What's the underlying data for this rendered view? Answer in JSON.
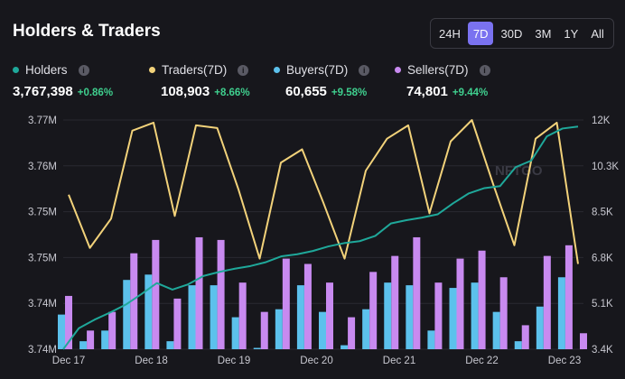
{
  "header": {
    "title": "Holders & Traders"
  },
  "ranges": [
    {
      "label": "24H",
      "active": false
    },
    {
      "label": "7D",
      "active": true
    },
    {
      "label": "30D",
      "active": false
    },
    {
      "label": "3M",
      "active": false
    },
    {
      "label": "1Y",
      "active": false
    },
    {
      "label": "All",
      "active": false
    }
  ],
  "stats": {
    "holders": {
      "label": "Holders",
      "value": "3,767,398",
      "change": "+0.86%",
      "color": "#1fa89a"
    },
    "traders": {
      "label": "Traders(7D)",
      "value": "108,903",
      "change": "+8.66%",
      "color": "#f2d27a"
    },
    "buyers": {
      "label": "Buyers(7D)",
      "value": "60,655",
      "change": "+9.58%",
      "color": "#5cc1ec"
    },
    "sellers": {
      "label": "Sellers(7D)",
      "value": "74,801",
      "change": "+9.44%",
      "color": "#c88af0"
    }
  },
  "watermark": "NFTGO",
  "chart_data": {
    "type": "bar+line",
    "x_ticks": [
      "Dec 17",
      "Dec 18",
      "Dec 19",
      "Dec 20",
      "Dec 21",
      "Dec 22",
      "Dec 23"
    ],
    "left_axis": {
      "ticks": [
        "3.74M",
        "3.74M",
        "3.75M",
        "3.75M",
        "3.76M",
        "3.77M"
      ],
      "ylim": [
        3735000,
        3770000
      ]
    },
    "right_axis": {
      "ticks": [
        "3.4K",
        "5.1K",
        "6.8K",
        "8.5K",
        "10.3K",
        "12K"
      ],
      "ylim": [
        3400,
        12000
      ]
    },
    "series": [
      {
        "name": "Holders",
        "axis": "left",
        "type": "line",
        "color": "#1fa89a",
        "values": [
          3735000,
          3738200,
          3739500,
          3740600,
          3741800,
          3743400,
          3745100,
          3744100,
          3744900,
          3746200,
          3746800,
          3747300,
          3747700,
          3748300,
          3749200,
          3749500,
          3750000,
          3750700,
          3751200,
          3751500,
          3752300,
          3754200,
          3754700,
          3755100,
          3755600,
          3757300,
          3758800,
          3759600,
          3759900,
          3762800,
          3763800,
          3767500,
          3768700,
          3769000
        ]
      },
      {
        "name": "Traders(7D)",
        "axis": "right",
        "type": "line",
        "color": "#f2d27a",
        "values": [
          9200,
          7200,
          8300,
          11600,
          11900,
          8400,
          11800,
          11700,
          9400,
          6800,
          10400,
          10900,
          8900,
          6800,
          10100,
          11300,
          11800,
          8500,
          11200,
          12000,
          9600,
          7300,
          11300,
          11900,
          6600
        ]
      },
      {
        "name": "Buyers(7D)",
        "axis": "right",
        "type": "bar",
        "color": "#5cc1ec",
        "values": [
          4700,
          3700,
          4100,
          6000,
          6200,
          3700,
          5800,
          5800,
          4600,
          3450,
          4900,
          5800,
          4800,
          3550,
          4900,
          5900,
          5800,
          4100,
          5700,
          5900,
          4800,
          3700,
          5000,
          6100
        ]
      },
      {
        "name": "Sellers(7D)",
        "axis": "right",
        "type": "bar",
        "color": "#c88af0",
        "values": [
          5400,
          4100,
          4800,
          7000,
          7500,
          5300,
          7600,
          7500,
          5900,
          4800,
          6800,
          6600,
          5900,
          4600,
          6300,
          6900,
          7600,
          5900,
          6800,
          7100,
          6100,
          4300,
          6900,
          7300,
          4000
        ]
      }
    ]
  }
}
